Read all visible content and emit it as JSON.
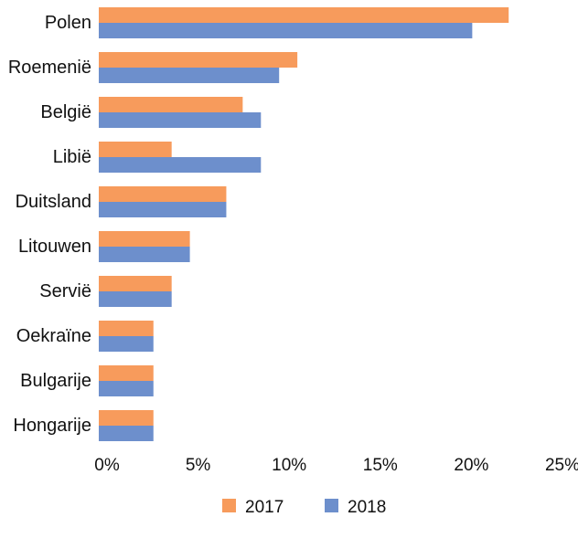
{
  "chart_data": {
    "type": "bar",
    "orientation": "horizontal",
    "categories": [
      "Polen",
      "Roemenië",
      "België",
      "Libië",
      "Duitsland",
      "Litouwen",
      "Servië",
      "Oekraïne",
      "Bulgarije",
      "Hongarije"
    ],
    "series": [
      {
        "name": "2017",
        "color": "#F79B5C",
        "values": [
          22.5,
          10.9,
          7.9,
          4.0,
          7.0,
          5.0,
          4.0,
          3.0,
          3.0,
          3.0
        ]
      },
      {
        "name": "2018",
        "color": "#6D8FCC",
        "values": [
          20.5,
          9.9,
          8.9,
          8.9,
          7.0,
          5.0,
          4.0,
          3.0,
          3.0,
          3.0
        ]
      }
    ],
    "xaxis": {
      "ticks": [
        0,
        5,
        10,
        15,
        20,
        25
      ],
      "tick_labels": [
        "0%",
        "5%",
        "10%",
        "15%",
        "20%",
        "25%"
      ],
      "xlim": [
        0,
        25
      ]
    },
    "title": "",
    "xlabel": "",
    "ylabel": "",
    "grid": false,
    "legend_position": "bottom-center"
  }
}
